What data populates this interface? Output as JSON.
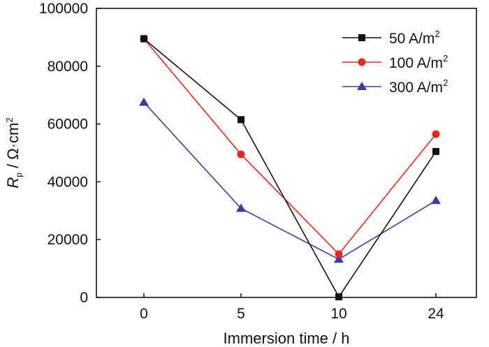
{
  "chart_data": {
    "type": "line",
    "title": "",
    "categories": [
      "0",
      "5",
      "10",
      "24"
    ],
    "xlabel": "Immersion time / h",
    "ylabel": {
      "symbol": "R",
      "subscript": "p",
      "unit_prefix": " / Ω·cm",
      "unit_power": "2"
    },
    "ylim": [
      0,
      100000
    ],
    "yticks": [
      "0",
      "20000",
      "40000",
      "60000",
      "80000",
      "100000"
    ],
    "ytick_values": [
      0,
      20000,
      40000,
      60000,
      80000,
      100000
    ],
    "grid": false,
    "legend_position": "top-right",
    "series": [
      {
        "name": "50 A/m",
        "name_sup": "2",
        "color": "#111111",
        "marker": "square",
        "values": [
          89500,
          61500,
          200,
          50500
        ]
      },
      {
        "name": "100 A/m",
        "name_sup": "2",
        "color": "#e8281e",
        "marker": "circle",
        "values": [
          89500,
          49500,
          15000,
          56500
        ]
      },
      {
        "name": "300 A/m",
        "name_sup": "2",
        "color": "#3c3c9c",
        "marker": "triangle",
        "values": [
          67500,
          30800,
          13200,
          33500
        ]
      }
    ]
  }
}
